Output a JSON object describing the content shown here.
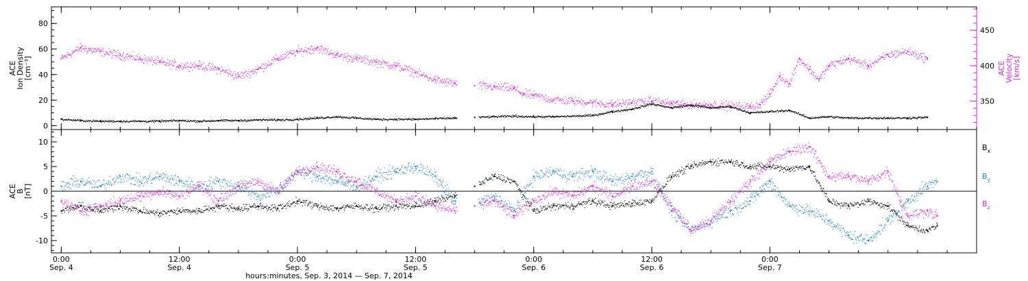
{
  "chart_data": [
    {
      "type": "scatter",
      "panel": "top",
      "left_axis": {
        "label_lines": [
          "ACE",
          "Ion Density",
          "[cm⁻³]"
        ],
        "ylim": [
          -3,
          93
        ],
        "ticks": [
          0,
          20,
          40,
          60,
          80
        ],
        "tick_labels": [
          "0",
          "20",
          "40",
          "60",
          "80"
        ],
        "color": "#000000"
      },
      "right_axis": {
        "label_lines": [
          "ACE",
          "Velocity",
          "[km/s]"
        ],
        "ylim": [
          310,
          483
        ],
        "ticks": [
          350,
          400,
          450
        ],
        "tick_labels": [
          "350",
          "400",
          "450"
        ],
        "color": "#e020e0"
      },
      "series": [
        {
          "key": "density",
          "color": "#000000",
          "axis": "left",
          "points": [
            [
              0,
              5
            ],
            [
              2,
              4
            ],
            [
              4,
              3.5
            ],
            [
              6,
              3.5
            ],
            [
              8,
              3.5
            ],
            [
              10,
              3.5
            ],
            [
              12,
              4
            ],
            [
              14,
              3.5
            ],
            [
              16,
              4
            ],
            [
              18,
              4
            ],
            [
              20,
              4.5
            ],
            [
              22,
              4.5
            ],
            [
              24,
              5
            ],
            [
              26,
              6
            ],
            [
              28,
              7
            ],
            [
              30,
              6
            ],
            [
              32,
              5
            ],
            [
              34,
              5
            ],
            [
              36,
              5
            ],
            [
              38,
              5.5
            ],
            [
              40,
              6
            ],
            [
              42,
              6.5
            ],
            [
              44,
              7
            ],
            [
              46,
              7.5
            ],
            [
              48,
              7
            ],
            [
              50,
              7
            ],
            [
              52,
              7.5
            ],
            [
              54,
              8
            ],
            [
              56,
              11
            ],
            [
              58,
              13
            ],
            [
              60,
              17
            ],
            [
              62,
              14
            ],
            [
              64,
              16
            ],
            [
              66,
              14
            ],
            [
              68,
              15
            ],
            [
              70,
              10
            ],
            [
              72,
              11
            ],
            [
              74,
              12
            ],
            [
              76,
              6
            ],
            [
              78,
              7
            ],
            [
              80,
              6
            ],
            [
              82,
              6
            ],
            [
              84,
              6
            ],
            [
              86,
              6
            ],
            [
              88,
              6.5
            ]
          ]
        },
        {
          "key": "velocity",
          "color": "#e020e0",
          "axis": "right",
          "points": [
            [
              0,
              410
            ],
            [
              2,
              425
            ],
            [
              4,
              420
            ],
            [
              6,
              415
            ],
            [
              8,
              410
            ],
            [
              10,
              405
            ],
            [
              12,
              400
            ],
            [
              14,
              400
            ],
            [
              16,
              395
            ],
            [
              18,
              385
            ],
            [
              20,
              395
            ],
            [
              22,
              410
            ],
            [
              24,
              420
            ],
            [
              26,
              425
            ],
            [
              28,
              415
            ],
            [
              30,
              410
            ],
            [
              32,
              405
            ],
            [
              34,
              400
            ],
            [
              36,
              390
            ],
            [
              38,
              380
            ],
            [
              40,
              375
            ],
            [
              42,
              372
            ],
            [
              44,
              370
            ],
            [
              46,
              368
            ],
            [
              47,
              360
            ],
            [
              48,
              358
            ],
            [
              50,
              352
            ],
            [
              52,
              350
            ],
            [
              54,
              348
            ],
            [
              56,
              345
            ],
            [
              58,
              348
            ],
            [
              60,
              350
            ],
            [
              62,
              347
            ],
            [
              64,
              345
            ],
            [
              66,
              345
            ],
            [
              68,
              343
            ],
            [
              70,
              342
            ],
            [
              71,
              345
            ],
            [
              72,
              360
            ],
            [
              73,
              385
            ],
            [
              74,
              375
            ],
            [
              75,
              410
            ],
            [
              76,
              395
            ],
            [
              77,
              380
            ],
            [
              78,
              400
            ],
            [
              80,
              410
            ],
            [
              82,
              400
            ],
            [
              84,
              415
            ],
            [
              86,
              420
            ],
            [
              88,
              410
            ]
          ]
        }
      ]
    },
    {
      "type": "scatter",
      "panel": "bottom",
      "left_axis": {
        "label_lines": [
          "ACE",
          "B",
          "[nT]"
        ],
        "ylim": [
          -12.5,
          12.5
        ],
        "ticks": [
          -10,
          -5,
          0,
          5,
          10
        ],
        "tick_labels": [
          "-10",
          "-5",
          "0",
          "5",
          "10"
        ],
        "zero_line": true,
        "color": "#000000"
      },
      "legend": {
        "placement": "right",
        "entries": [
          {
            "main": "B",
            "sub": "x",
            "color": "#000000"
          },
          {
            "main": "B",
            "sub": "y",
            "color": "#1a7fd9"
          },
          {
            "main": "B",
            "sub": "z",
            "color": "#e020e0"
          }
        ]
      },
      "series": [
        {
          "key": "bx",
          "color": "#000000",
          "points": [
            [
              0,
              -4
            ],
            [
              2,
              -3
            ],
            [
              4,
              -4
            ],
            [
              6,
              -3
            ],
            [
              8,
              -4
            ],
            [
              10,
              -4.5
            ],
            [
              12,
              -4
            ],
            [
              14,
              -4
            ],
            [
              16,
              -3
            ],
            [
              18,
              -3.5
            ],
            [
              20,
              -3
            ],
            [
              22,
              -3.5
            ],
            [
              24,
              -2
            ],
            [
              26,
              -3
            ],
            [
              28,
              -3.5
            ],
            [
              30,
              -3
            ],
            [
              32,
              -3.5
            ],
            [
              34,
              -3
            ],
            [
              36,
              -3
            ],
            [
              38,
              -2
            ],
            [
              40,
              -1
            ],
            [
              42,
              1
            ],
            [
              44,
              3
            ],
            [
              46,
              2
            ],
            [
              48,
              -4
            ],
            [
              50,
              -3
            ],
            [
              52,
              -3
            ],
            [
              54,
              -2
            ],
            [
              56,
              -3
            ],
            [
              58,
              -2.5
            ],
            [
              60,
              -2
            ],
            [
              62,
              3
            ],
            [
              64,
              5
            ],
            [
              66,
              6
            ],
            [
              68,
              6
            ],
            [
              70,
              5
            ],
            [
              72,
              5
            ],
            [
              74,
              4.5
            ],
            [
              76,
              5
            ],
            [
              78,
              -2
            ],
            [
              80,
              -3
            ],
            [
              82,
              -2
            ],
            [
              84,
              -3
            ],
            [
              86,
              -7
            ],
            [
              88,
              -8
            ],
            [
              89,
              -7
            ]
          ]
        },
        {
          "key": "by",
          "color": "#1a7fd9",
          "points": [
            [
              0,
              1
            ],
            [
              2,
              2
            ],
            [
              4,
              1
            ],
            [
              6,
              3
            ],
            [
              8,
              2
            ],
            [
              10,
              3
            ],
            [
              12,
              2
            ],
            [
              14,
              1
            ],
            [
              16,
              2
            ],
            [
              18,
              1
            ],
            [
              20,
              -1
            ],
            [
              22,
              0
            ],
            [
              24,
              4
            ],
            [
              26,
              3
            ],
            [
              28,
              2
            ],
            [
              30,
              1
            ],
            [
              32,
              3
            ],
            [
              34,
              4
            ],
            [
              36,
              5
            ],
            [
              38,
              3
            ],
            [
              40,
              -2
            ],
            [
              42,
              -3
            ],
            [
              44,
              -1
            ],
            [
              46,
              -4
            ],
            [
              48,
              3
            ],
            [
              50,
              4
            ],
            [
              52,
              3
            ],
            [
              54,
              4
            ],
            [
              56,
              2
            ],
            [
              58,
              3
            ],
            [
              60,
              4
            ],
            [
              62,
              -4
            ],
            [
              64,
              -8
            ],
            [
              66,
              -6
            ],
            [
              68,
              -4
            ],
            [
              70,
              -2
            ],
            [
              72,
              2
            ],
            [
              74,
              -3
            ],
            [
              76,
              -4
            ],
            [
              78,
              -6
            ],
            [
              80,
              -9
            ],
            [
              82,
              -10
            ],
            [
              84,
              -6
            ],
            [
              86,
              -2
            ],
            [
              88,
              1
            ],
            [
              89,
              2
            ]
          ]
        },
        {
          "key": "bz",
          "color": "#e020e0",
          "points": [
            [
              0,
              -2
            ],
            [
              2,
              -4
            ],
            [
              4,
              -3
            ],
            [
              6,
              -2
            ],
            [
              8,
              -1
            ],
            [
              10,
              0
            ],
            [
              12,
              -1
            ],
            [
              14,
              1
            ],
            [
              16,
              -2
            ],
            [
              18,
              1
            ],
            [
              20,
              2
            ],
            [
              22,
              0
            ],
            [
              24,
              4
            ],
            [
              26,
              5
            ],
            [
              28,
              4
            ],
            [
              30,
              2
            ],
            [
              32,
              0
            ],
            [
              34,
              -2
            ],
            [
              36,
              -1
            ],
            [
              38,
              -3
            ],
            [
              40,
              -4
            ],
            [
              42,
              -3
            ],
            [
              44,
              -2
            ],
            [
              46,
              -5
            ],
            [
              48,
              -2
            ],
            [
              50,
              0
            ],
            [
              52,
              -1
            ],
            [
              54,
              1
            ],
            [
              56,
              -1
            ],
            [
              58,
              1
            ],
            [
              60,
              2
            ],
            [
              62,
              -3
            ],
            [
              64,
              -8
            ],
            [
              66,
              -6
            ],
            [
              68,
              -2
            ],
            [
              70,
              2
            ],
            [
              72,
              6
            ],
            [
              74,
              8
            ],
            [
              76,
              9
            ],
            [
              78,
              3
            ],
            [
              80,
              3
            ],
            [
              82,
              2
            ],
            [
              84,
              4
            ],
            [
              86,
              -5
            ],
            [
              88,
              -4
            ],
            [
              89,
              -5
            ]
          ]
        }
      ]
    }
  ],
  "x_axis": {
    "range_hours": [
      -1,
      93
    ],
    "ticks": [
      {
        "hour": 0,
        "time": "0:00",
        "date": "Sep. 4"
      },
      {
        "hour": 12,
        "time": "12:00",
        "date": "Sep. 4"
      },
      {
        "hour": 24,
        "time": "0:00",
        "date": "Sep. 5"
      },
      {
        "hour": 36,
        "time": "12:00",
        "date": "Sep. 5"
      },
      {
        "hour": 48,
        "time": "0:00",
        "date": "Sep. 6"
      },
      {
        "hour": 60,
        "time": "12:00",
        "date": "Sep. 6"
      },
      {
        "hour": 72,
        "time": "0:00",
        "date": "Sep. 7"
      }
    ],
    "minor_every_hours": 3,
    "title": "hours:minutes, Sep.  3, 2014 — Sep.  7, 2014"
  }
}
